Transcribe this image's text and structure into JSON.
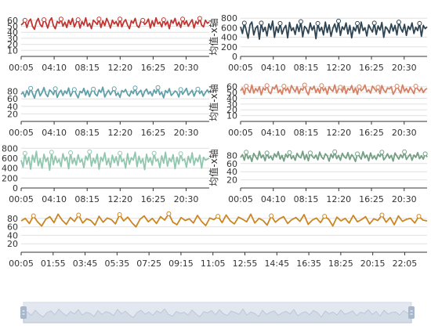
{
  "chart_data": [
    {
      "type": "line",
      "name": "panel-1",
      "color": "#c23531",
      "yticks": [
        10,
        20,
        30,
        40,
        50,
        60
      ],
      "ylim": [
        0,
        65
      ],
      "values": [
        52,
        55,
        60,
        48,
        58,
        62,
        50,
        45,
        57,
        63,
        53,
        49,
        61,
        56,
        47,
        59,
        64,
        51,
        46,
        58,
        55,
        62,
        50,
        57,
        48,
        60,
        53,
        63,
        49,
        56,
        61,
        47,
        58,
        52,
        64,
        50,
        55,
        46,
        60,
        57,
        53,
        62,
        48,
        59,
        51,
        63,
        56,
        47,
        60,
        54,
        58,
        50,
        62,
        49,
        57,
        61,
        52,
        46,
        59,
        55,
        63,
        51,
        48,
        58,
        60,
        53,
        56,
        62,
        47,
        59,
        50,
        64,
        54,
        57,
        49,
        61,
        52,
        58,
        46,
        60,
        55,
        63,
        51,
        57,
        48,
        62,
        53,
        59,
        50,
        56,
        61,
        47,
        58,
        54,
        63,
        52,
        49,
        60,
        55,
        57
      ],
      "xticks": [
        "00:05",
        "04:10",
        "08:15",
        "12:20",
        "16:25",
        "20:30"
      ],
      "ytitle": ""
    },
    {
      "type": "line",
      "name": "panel-2",
      "color": "#2f4554",
      "yticks": [
        0,
        200,
        400,
        600,
        800
      ],
      "ylim": [
        0,
        820
      ],
      "values": [
        620,
        480,
        700,
        550,
        380,
        660,
        720,
        450,
        590,
        640,
        360,
        700,
        520,
        610,
        430,
        680,
        560,
        740,
        400,
        620,
        500,
        690,
        470,
        580,
        650,
        390,
        710,
        540,
        600,
        460,
        670,
        520,
        730,
        410,
        630,
        580,
        480,
        700,
        550,
        640,
        370,
        690,
        530,
        610,
        450,
        720,
        500,
        660,
        420,
        590,
        680,
        510,
        740,
        440,
        620,
        560,
        700,
        470,
        650,
        390,
        610,
        530,
        690,
        480,
        720,
        540,
        600,
        430,
        660,
        580,
        510,
        700,
        460,
        640,
        550,
        710,
        400,
        620,
        570,
        490,
        680,
        530,
        650,
        450,
        720,
        590,
        510,
        670,
        440,
        630,
        560,
        700,
        480,
        610,
        540,
        690,
        420,
        650,
        580,
        620
      ],
      "xticks": [
        "00:05",
        "04:10",
        "08:15",
        "12:20",
        "16:25",
        "20:30"
      ],
      "ytitle": "均值-x轴"
    },
    {
      "type": "line",
      "name": "panel-3",
      "color": "#61a0a8",
      "yticks": [
        20,
        40,
        60,
        80
      ],
      "ylim": [
        0,
        100
      ],
      "values": [
        72,
        78,
        65,
        82,
        70,
        88,
        75,
        62,
        80,
        86,
        68,
        77,
        90,
        73,
        66,
        84,
        79,
        71,
        87,
        64,
        76,
        83,
        69,
        81,
        74,
        89,
        67,
        78,
        85,
        72,
        63,
        80,
        76,
        88,
        70,
        82,
        66,
        79,
        86,
        73,
        68,
        84,
        77,
        91,
        65,
        75,
        83,
        71,
        80,
        87,
        69,
        76,
        64,
        82,
        78,
        85,
        72,
        67,
        81,
        74,
        89,
        70,
        77,
        83,
        66,
        80,
        86,
        73,
        79,
        68,
        84,
        75,
        90,
        71,
        78,
        63,
        82,
        76,
        87,
        69,
        74,
        81,
        77,
        65,
        85,
        72,
        80,
        88,
        70,
        76,
        83,
        67,
        79,
        86,
        74,
        81,
        68,
        77,
        84,
        75
      ],
      "xticks": [
        "00:05",
        "04:10",
        "08:15",
        "12:20",
        "16:25",
        "20:30"
      ],
      "ytitle": ""
    },
    {
      "type": "line",
      "name": "panel-4",
      "color": "#d48265",
      "yticks": [
        10,
        20,
        30,
        40,
        50,
        60
      ],
      "ylim": [
        0,
        65
      ],
      "values": [
        53,
        58,
        47,
        61,
        55,
        50,
        63,
        49,
        57,
        52,
        60,
        46,
        58,
        54,
        62,
        51,
        48,
        59,
        56,
        63,
        50,
        55,
        47,
        61,
        53,
        58,
        49,
        62,
        56,
        51,
        60,
        48,
        57,
        54,
        63,
        52,
        46,
        59,
        55,
        61,
        50,
        57,
        49,
        62,
        53,
        58,
        47,
        60,
        55,
        52,
        63,
        49,
        56,
        59,
        51,
        61,
        48,
        57,
        54,
        62,
        50,
        58,
        47,
        60,
        53,
        56,
        63,
        51,
        55,
        49,
        61,
        57,
        52,
        59,
        48,
        62,
        54,
        50,
        58,
        56,
        60,
        47,
        53,
        61,
        55,
        49,
        63,
        52,
        57,
        50,
        59,
        54,
        48,
        61,
        56,
        52,
        58,
        50,
        55,
        57
      ],
      "xticks": [
        "00:05",
        "04:10",
        "08:15",
        "12:20",
        "16:25",
        "20:30"
      ],
      "ytitle": "均值-x轴"
    },
    {
      "type": "line",
      "name": "panel-5",
      "color": "#91c7ae",
      "yticks": [
        0,
        200,
        400,
        600,
        800
      ],
      "ylim": [
        0,
        820
      ],
      "values": [
        560,
        420,
        700,
        480,
        620,
        380,
        660,
        520,
        740,
        450,
        590,
        400,
        680,
        530,
        610,
        360,
        720,
        470,
        640,
        510,
        580,
        430,
        690,
        550,
        620,
        390,
        710,
        490,
        600,
        460,
        670,
        520,
        580,
        410,
        640,
        560,
        730,
        440,
        600,
        500,
        680,
        380,
        620,
        540,
        710,
        470,
        590,
        420,
        660,
        510,
        630,
        450,
        700,
        530,
        580,
        400,
        690,
        480,
        610,
        560,
        720,
        430,
        640,
        500,
        590,
        370,
        680,
        520,
        610,
        460,
        700,
        540,
        580,
        410,
        650,
        500,
        720,
        440,
        600,
        530,
        670,
        390,
        620,
        480,
        690,
        550,
        580,
        420,
        640,
        510,
        710,
        460,
        600,
        530,
        660,
        400,
        620,
        560,
        580,
        600
      ],
      "xticks": [
        "00:05",
        "04:10",
        "08:15",
        "12:20",
        "16:25",
        "20:30"
      ],
      "ytitle": ""
    },
    {
      "type": "line",
      "name": "panel-6",
      "color": "#749f83",
      "yticks": [
        20,
        40,
        60,
        80
      ],
      "ylim": [
        0,
        100
      ],
      "values": [
        75,
        82,
        68,
        88,
        72,
        79,
        65,
        85,
        77,
        70,
        90,
        74,
        81,
        67,
        86,
        73,
        78,
        69,
        84,
        76,
        89,
        71,
        80,
        66,
        83,
        75,
        87,
        72,
        79,
        68,
        85,
        77,
        74,
        90,
        70,
        82,
        67,
        86,
        78,
        73,
        81,
        69,
        88,
        76,
        71,
        84,
        79,
        66,
        83,
        74,
        89,
        72,
        80,
        68,
        85,
        77,
        73,
        87,
        70,
        82,
        76,
        65,
        84,
        78,
        71,
        89,
        74,
        81,
        67,
        86,
        72,
        79,
        70,
        83,
        77,
        88,
        69,
        75,
        84,
        73,
        80,
        66,
        86,
        78,
        71,
        82,
        74,
        89,
        70,
        77,
        83,
        68,
        81,
        75,
        87,
        72,
        79,
        71,
        84,
        76
      ],
      "xticks": [
        "00:05",
        "04:10",
        "08:15",
        "12:20",
        "16:25",
        "20:30"
      ],
      "ytitle": "均值-x轴"
    },
    {
      "type": "line",
      "name": "panel-7",
      "color": "#ca8622",
      "yticks": [
        20,
        40,
        60,
        80
      ],
      "ylim": [
        0,
        100
      ],
      "values": [
        74,
        80,
        68,
        86,
        72,
        62,
        78,
        84,
        70,
        90,
        76,
        66,
        82,
        73,
        88,
        69,
        79,
        75,
        64,
        85,
        71,
        81,
        77,
        67,
        89,
        74,
        83,
        70,
        60,
        78,
        86,
        72,
        80,
        68,
        84,
        76,
        91,
        71,
        65,
        82,
        75,
        79,
        69,
        87,
        73,
        63,
        81,
        77,
        85,
        70,
        88,
        74,
        67,
        83,
        78,
        72,
        90,
        69,
        80,
        75,
        64,
        86,
        71,
        79,
        84,
        68,
        77,
        82,
        73,
        89,
        66,
        76,
        81,
        70,
        85,
        78,
        62,
        83,
        74,
        80,
        69,
        87,
        72,
        77,
        84,
        67,
        79,
        75,
        88,
        71,
        82,
        65,
        86,
        73,
        78,
        80,
        69,
        85,
        76,
        74
      ],
      "xticks": [
        "00:05",
        "01:55",
        "03:45",
        "05:35",
        "07:25",
        "09:15",
        "11:05",
        "12:55",
        "14:45",
        "16:35",
        "18:25",
        "20:15",
        "22:05"
      ],
      "ytitle": ""
    }
  ],
  "data_zoom": {
    "preview_color": "#aab6c9",
    "handle_color": "#a7b7cc"
  }
}
